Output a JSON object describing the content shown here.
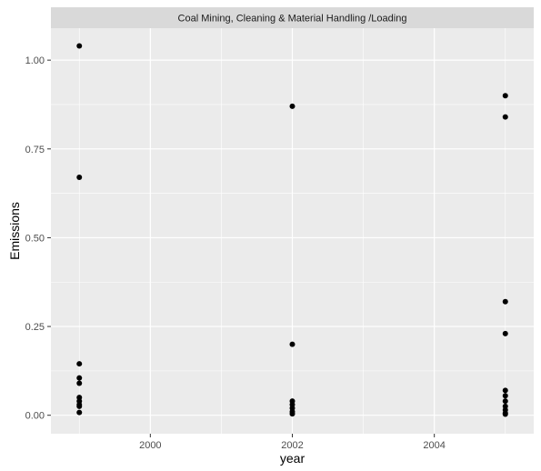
{
  "chart_data": {
    "type": "scatter",
    "facet_label": "Coal Mining, Cleaning & Material Handling /Loading",
    "xlabel": "year",
    "ylabel": "Emissions",
    "xlim": [
      1998.6,
      2005.4
    ],
    "ylim": [
      -0.052,
      1.09
    ],
    "x_ticks": [
      2000,
      2002,
      2004
    ],
    "x_tick_labels": [
      "2000",
      "2002",
      "2004"
    ],
    "x_minor_ticks": [
      1999,
      2001,
      2003,
      2005
    ],
    "y_ticks": [
      0.0,
      0.25,
      0.5,
      0.75,
      1.0
    ],
    "y_tick_labels": [
      "0.00",
      "0.25",
      "0.50",
      "0.75",
      "1.00"
    ],
    "y_minor_ticks": [
      0.125,
      0.375,
      0.625,
      0.875
    ],
    "grid": true,
    "colors": {
      "panel": "#ebebeb",
      "grid": "#ffffff",
      "strip": "#d9d9d9",
      "point": "#000000"
    },
    "points": [
      {
        "x": 1999,
        "y": 1.04
      },
      {
        "x": 1999,
        "y": 0.67
      },
      {
        "x": 1999,
        "y": 0.145
      },
      {
        "x": 1999,
        "y": 0.105
      },
      {
        "x": 1999,
        "y": 0.09
      },
      {
        "x": 1999,
        "y": 0.05
      },
      {
        "x": 1999,
        "y": 0.04
      },
      {
        "x": 1999,
        "y": 0.03
      },
      {
        "x": 1999,
        "y": 0.025
      },
      {
        "x": 1999,
        "y": 0.008
      },
      {
        "x": 2002,
        "y": 0.87
      },
      {
        "x": 2002,
        "y": 0.2
      },
      {
        "x": 2002,
        "y": 0.04
      },
      {
        "x": 2002,
        "y": 0.03
      },
      {
        "x": 2002,
        "y": 0.02
      },
      {
        "x": 2002,
        "y": 0.01
      },
      {
        "x": 2002,
        "y": 0.004
      },
      {
        "x": 2005,
        "y": 0.9
      },
      {
        "x": 2005,
        "y": 0.84
      },
      {
        "x": 2005,
        "y": 0.32
      },
      {
        "x": 2005,
        "y": 0.23
      },
      {
        "x": 2005,
        "y": 0.07
      },
      {
        "x": 2005,
        "y": 0.055
      },
      {
        "x": 2005,
        "y": 0.04
      },
      {
        "x": 2005,
        "y": 0.025
      },
      {
        "x": 2005,
        "y": 0.015
      },
      {
        "x": 2005,
        "y": 0.006
      },
      {
        "x": 2005,
        "y": 0.003
      }
    ]
  }
}
